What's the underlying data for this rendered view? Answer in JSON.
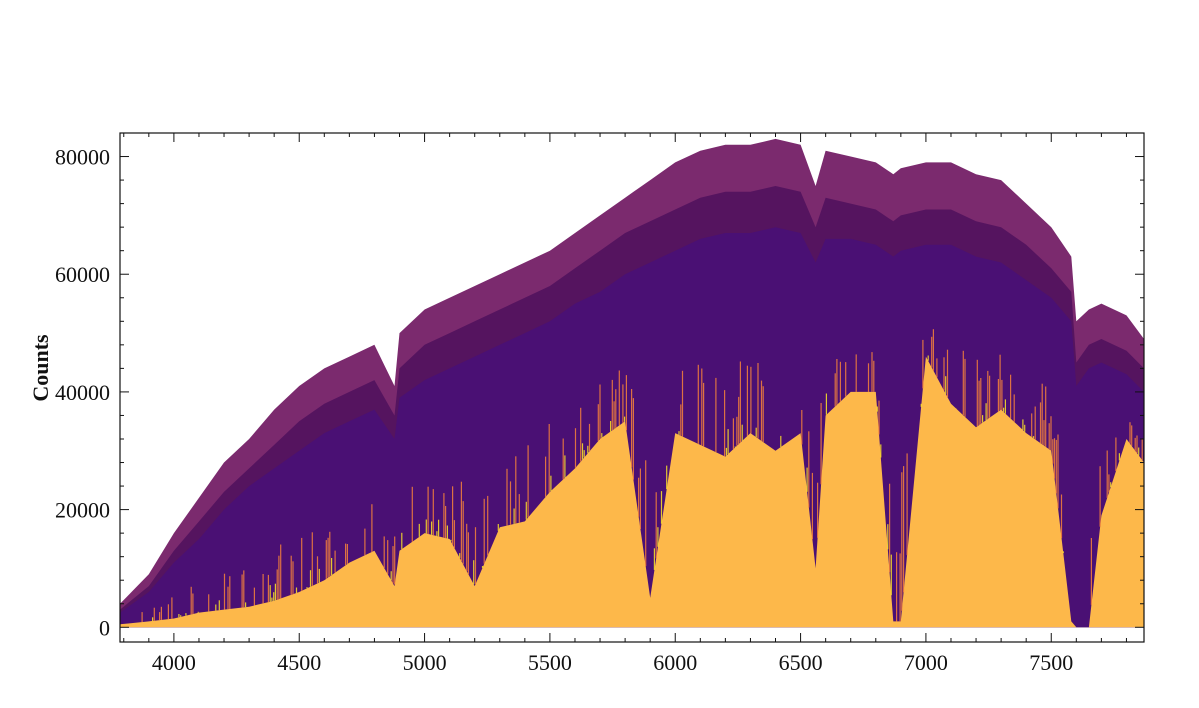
{
  "chart_data": {
    "type": "area",
    "title": "",
    "xlabel": "",
    "ylabel": "Counts",
    "xlim": [
      3785,
      7870
    ],
    "ylim": [
      -2500,
      84000
    ],
    "x_ticks": [
      4000,
      4500,
      5000,
      5500,
      6000,
      6500,
      7000,
      7500
    ],
    "y_ticks": [
      0,
      20000,
      40000,
      60000,
      80000
    ],
    "x_tick_labels": [
      "4000",
      "4500",
      "5000",
      "5500",
      "6000",
      "6500",
      "7000",
      "7500"
    ],
    "y_tick_labels": [
      "0",
      "20000",
      "40000",
      "60000",
      "80000"
    ],
    "grid": false,
    "legend": "none",
    "colormap": [
      "#fde725",
      "#fdb84a",
      "#f7823a",
      "#3b0f70",
      "#4a1074",
      "#55145f",
      "#7b2a6e"
    ],
    "series": [
      {
        "x": [
          3785,
          3900,
          4000,
          4100,
          4200,
          4300,
          4400,
          4500,
          4600,
          4700,
          4800,
          4880,
          4900,
          5000,
          5100,
          5200,
          5300,
          5400,
          5500,
          5600,
          5700,
          5800,
          5900,
          6000,
          6100,
          6200,
          6300,
          6400,
          6500,
          6560,
          6600,
          6700,
          6800,
          6870,
          6900,
          7000,
          7100,
          7200,
          7300,
          7400,
          7500,
          7580,
          7600,
          7650,
          7700,
          7800,
          7870
        ],
        "y": [
          4000,
          9000,
          16000,
          22000,
          28000,
          32000,
          37000,
          41000,
          44000,
          46000,
          48000,
          41000,
          50000,
          54000,
          56000,
          58000,
          60000,
          62000,
          64000,
          67000,
          70000,
          73000,
          76000,
          79000,
          81000,
          82000,
          82000,
          83000,
          82000,
          75000,
          81000,
          80000,
          79000,
          77000,
          78000,
          79000,
          79000,
          77000,
          76000,
          72000,
          68000,
          63000,
          52000,
          54000,
          55000,
          53000,
          49000
        ]
      },
      {
        "x": [
          3785,
          3900,
          4000,
          4100,
          4200,
          4300,
          4400,
          4500,
          4600,
          4700,
          4800,
          4880,
          4900,
          5000,
          5100,
          5200,
          5300,
          5400,
          5500,
          5600,
          5700,
          5800,
          5900,
          6000,
          6100,
          6200,
          6300,
          6400,
          6500,
          6560,
          6600,
          6700,
          6800,
          6870,
          6900,
          7000,
          7100,
          7200,
          7300,
          7400,
          7500,
          7580,
          7600,
          7650,
          7700,
          7800,
          7870
        ],
        "y": [
          3000,
          7000,
          13000,
          18000,
          23000,
          27000,
          31000,
          35000,
          38000,
          40000,
          42000,
          36000,
          44000,
          48000,
          50000,
          52000,
          54000,
          56000,
          58000,
          61000,
          64000,
          67000,
          69000,
          71000,
          73000,
          74000,
          74000,
          75000,
          74000,
          68000,
          73000,
          72000,
          71000,
          69000,
          70000,
          71000,
          71000,
          69000,
          68000,
          65000,
          61000,
          57000,
          45000,
          48000,
          49000,
          47000,
          44000
        ]
      },
      {
        "x": [
          3785,
          3900,
          4000,
          4100,
          4200,
          4300,
          4400,
          4500,
          4600,
          4700,
          4800,
          4880,
          4900,
          5000,
          5100,
          5200,
          5300,
          5400,
          5500,
          5600,
          5700,
          5800,
          5900,
          6000,
          6100,
          6200,
          6300,
          6400,
          6500,
          6560,
          6600,
          6700,
          6800,
          6870,
          6900,
          7000,
          7100,
          7200,
          7300,
          7400,
          7500,
          7580,
          7600,
          7650,
          7700,
          7800,
          7870
        ],
        "y": [
          2500,
          6000,
          11000,
          15000,
          20000,
          24000,
          27000,
          30000,
          33000,
          35000,
          37000,
          32000,
          39000,
          42000,
          44000,
          46000,
          48000,
          50000,
          52000,
          55000,
          57000,
          60000,
          62000,
          64000,
          66000,
          67000,
          67000,
          68000,
          67000,
          62000,
          66000,
          66000,
          65000,
          63000,
          64000,
          65000,
          65000,
          63000,
          62000,
          59000,
          56000,
          52000,
          41000,
          44000,
          45000,
          43000,
          40000
        ]
      },
      {
        "x": [
          3785,
          3900,
          4000,
          4100,
          4200,
          4300,
          4400,
          4500,
          4600,
          4700,
          4800,
          4880,
          4900,
          5000,
          5100,
          5200,
          5300,
          5400,
          5500,
          5600,
          5700,
          5800,
          5900,
          6000,
          6100,
          6200,
          6300,
          6400,
          6500,
          6560,
          6600,
          6700,
          6800,
          6870,
          6900,
          7000,
          7100,
          7200,
          7300,
          7400,
          7500,
          7580,
          7600,
          7650,
          7700,
          7800,
          7870
        ],
        "y": [
          500,
          1000,
          1500,
          2500,
          3000,
          3500,
          4500,
          6000,
          8000,
          11000,
          13000,
          7000,
          13000,
          16000,
          15000,
          7000,
          17000,
          18000,
          23000,
          27000,
          32000,
          35000,
          5000,
          33000,
          31000,
          29000,
          33000,
          30000,
          33000,
          10000,
          36000,
          40000,
          40000,
          1000,
          1000,
          46000,
          38000,
          34000,
          37000,
          33000,
          30000,
          1000,
          0,
          0,
          19000,
          32000,
          28000
        ]
      }
    ]
  }
}
